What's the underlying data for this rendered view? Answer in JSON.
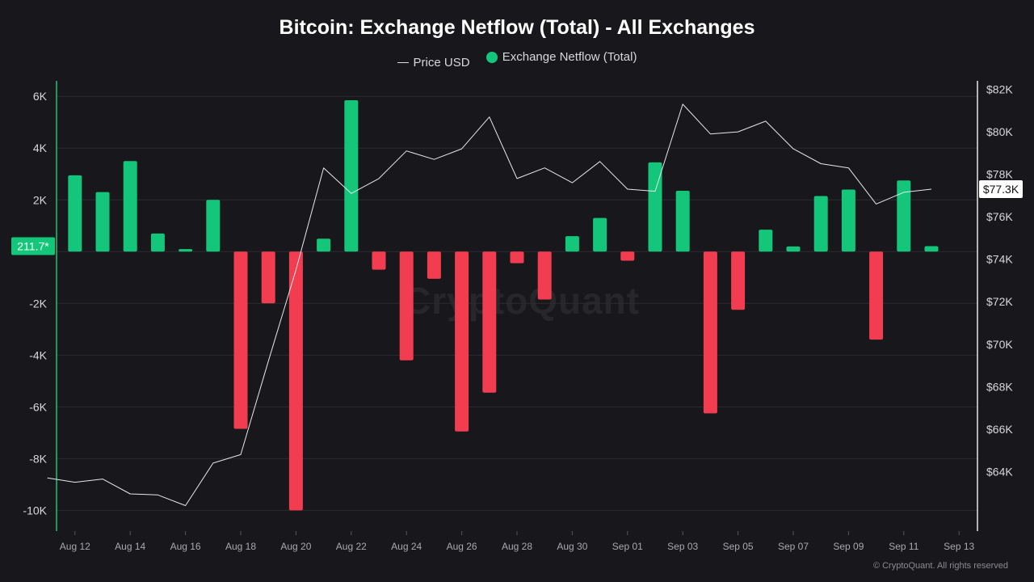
{
  "chart_data": {
    "type": "bar",
    "title": "Bitcoin: Exchange Netflow (Total) - All Exchanges",
    "watermark": "CryptoQuant",
    "copyright": "© CryptoQuant. All rights reserved",
    "legend_position": "top-center",
    "grid": true,
    "colors": {
      "positive": "#14c67a",
      "negative": "#f23c4f",
      "price_line": "#e8e8ea",
      "background": "#18181c",
      "left_axis": "#14c67a",
      "right_axis": "#e8e8ea"
    },
    "legend": [
      {
        "label": "Price USD",
        "marker": "line"
      },
      {
        "label": "Exchange Netflow (Total)",
        "marker": "dot"
      }
    ],
    "x": [
      "Aug 11",
      "Aug 12",
      "Aug 13",
      "Aug 14",
      "Aug 15",
      "Aug 16",
      "Aug 17",
      "Aug 18",
      "Aug 19",
      "Aug 20",
      "Aug 21",
      "Aug 22",
      "Aug 23",
      "Aug 24",
      "Aug 25",
      "Aug 26",
      "Aug 27",
      "Aug 28",
      "Aug 29",
      "Aug 30",
      "Aug 31",
      "Sep 01",
      "Sep 02",
      "Sep 03",
      "Sep 04",
      "Sep 05",
      "Sep 06",
      "Sep 07",
      "Sep 08",
      "Sep 09",
      "Sep 10",
      "Sep 11",
      "Sep 12",
      "Sep 13"
    ],
    "x_ticks": [
      "Aug 12",
      "Aug 14",
      "Aug 16",
      "Aug 18",
      "Aug 20",
      "Aug 22",
      "Aug 24",
      "Aug 26",
      "Aug 28",
      "Aug 30",
      "Sep 01",
      "Sep 03",
      "Sep 05",
      "Sep 07",
      "Sep 09",
      "Sep 11",
      "Sep 13"
    ],
    "series": [
      {
        "name": "Exchange Netflow (Total)",
        "axis": "left",
        "kind": "bar",
        "x": [
          "Aug 12",
          "Aug 13",
          "Aug 14",
          "Aug 15",
          "Aug 16",
          "Aug 17",
          "Aug 18",
          "Aug 19",
          "Aug 20",
          "Aug 21",
          "Aug 22",
          "Aug 23",
          "Aug 24",
          "Aug 25",
          "Aug 26",
          "Aug 27",
          "Aug 28",
          "Aug 29",
          "Aug 30",
          "Aug 31",
          "Sep 01",
          "Sep 02",
          "Sep 03",
          "Sep 04",
          "Sep 05",
          "Sep 06",
          "Sep 07",
          "Sep 08",
          "Sep 09",
          "Sep 10",
          "Sep 11",
          "Sep 12"
        ],
        "values": [
          2950,
          2300,
          3500,
          700,
          100,
          2000,
          -6850,
          -2000,
          -10000,
          500,
          5850,
          -700,
          -4200,
          -1050,
          -6950,
          -5450,
          -450,
          -1850,
          600,
          1300,
          -350,
          3450,
          2350,
          -6250,
          -2250,
          850,
          200,
          2150,
          2400,
          -3400,
          2750,
          211.7
        ]
      },
      {
        "name": "Price USD",
        "axis": "right",
        "kind": "line",
        "x": [
          "Aug 11",
          "Aug 12",
          "Aug 13",
          "Aug 14",
          "Aug 15",
          "Aug 16",
          "Aug 17",
          "Aug 18",
          "Aug 19",
          "Aug 20",
          "Aug 21",
          "Aug 22",
          "Aug 23",
          "Aug 24",
          "Aug 25",
          "Aug 26",
          "Aug 27",
          "Aug 28",
          "Aug 29",
          "Aug 30",
          "Aug 31",
          "Sep 01",
          "Sep 02",
          "Sep 03",
          "Sep 04",
          "Sep 05",
          "Sep 06",
          "Sep 07",
          "Sep 08",
          "Sep 09",
          "Sep 10",
          "Sep 11",
          "Sep 12"
        ],
        "values": [
          63700,
          63500,
          63650,
          62950,
          62900,
          62400,
          64400,
          64800,
          69200,
          73500,
          78300,
          77100,
          77800,
          79100,
          78700,
          79200,
          80700,
          77800,
          78300,
          77600,
          78600,
          77300,
          77200,
          81300,
          79900,
          80000,
          80500,
          79200,
          78500,
          78300,
          76600,
          77150,
          77300
        ]
      }
    ],
    "left_axis": {
      "range": [
        -10800,
        6600
      ],
      "ticks": [
        6000,
        4000,
        2000,
        0,
        -2000,
        -4000,
        -6000,
        -8000,
        -10000
      ],
      "tick_labels": [
        "6K",
        "4K",
        "2K",
        "",
        "-2K",
        "-4K",
        "-6K",
        "-8K",
        "-10K"
      ],
      "current_label": "211.7*",
      "current_value": 211.7
    },
    "right_axis": {
      "range": [
        61200,
        82400
      ],
      "ticks": [
        82000,
        80000,
        78000,
        76000,
        74000,
        72000,
        70000,
        68000,
        66000,
        64000
      ],
      "tick_labels": [
        "$82K",
        "$80K",
        "$78K",
        "$76K",
        "$74K",
        "$72K",
        "$70K",
        "$68K",
        "$66K",
        "$64K"
      ],
      "current_label": "$77.3K",
      "current_value": 77300
    }
  }
}
